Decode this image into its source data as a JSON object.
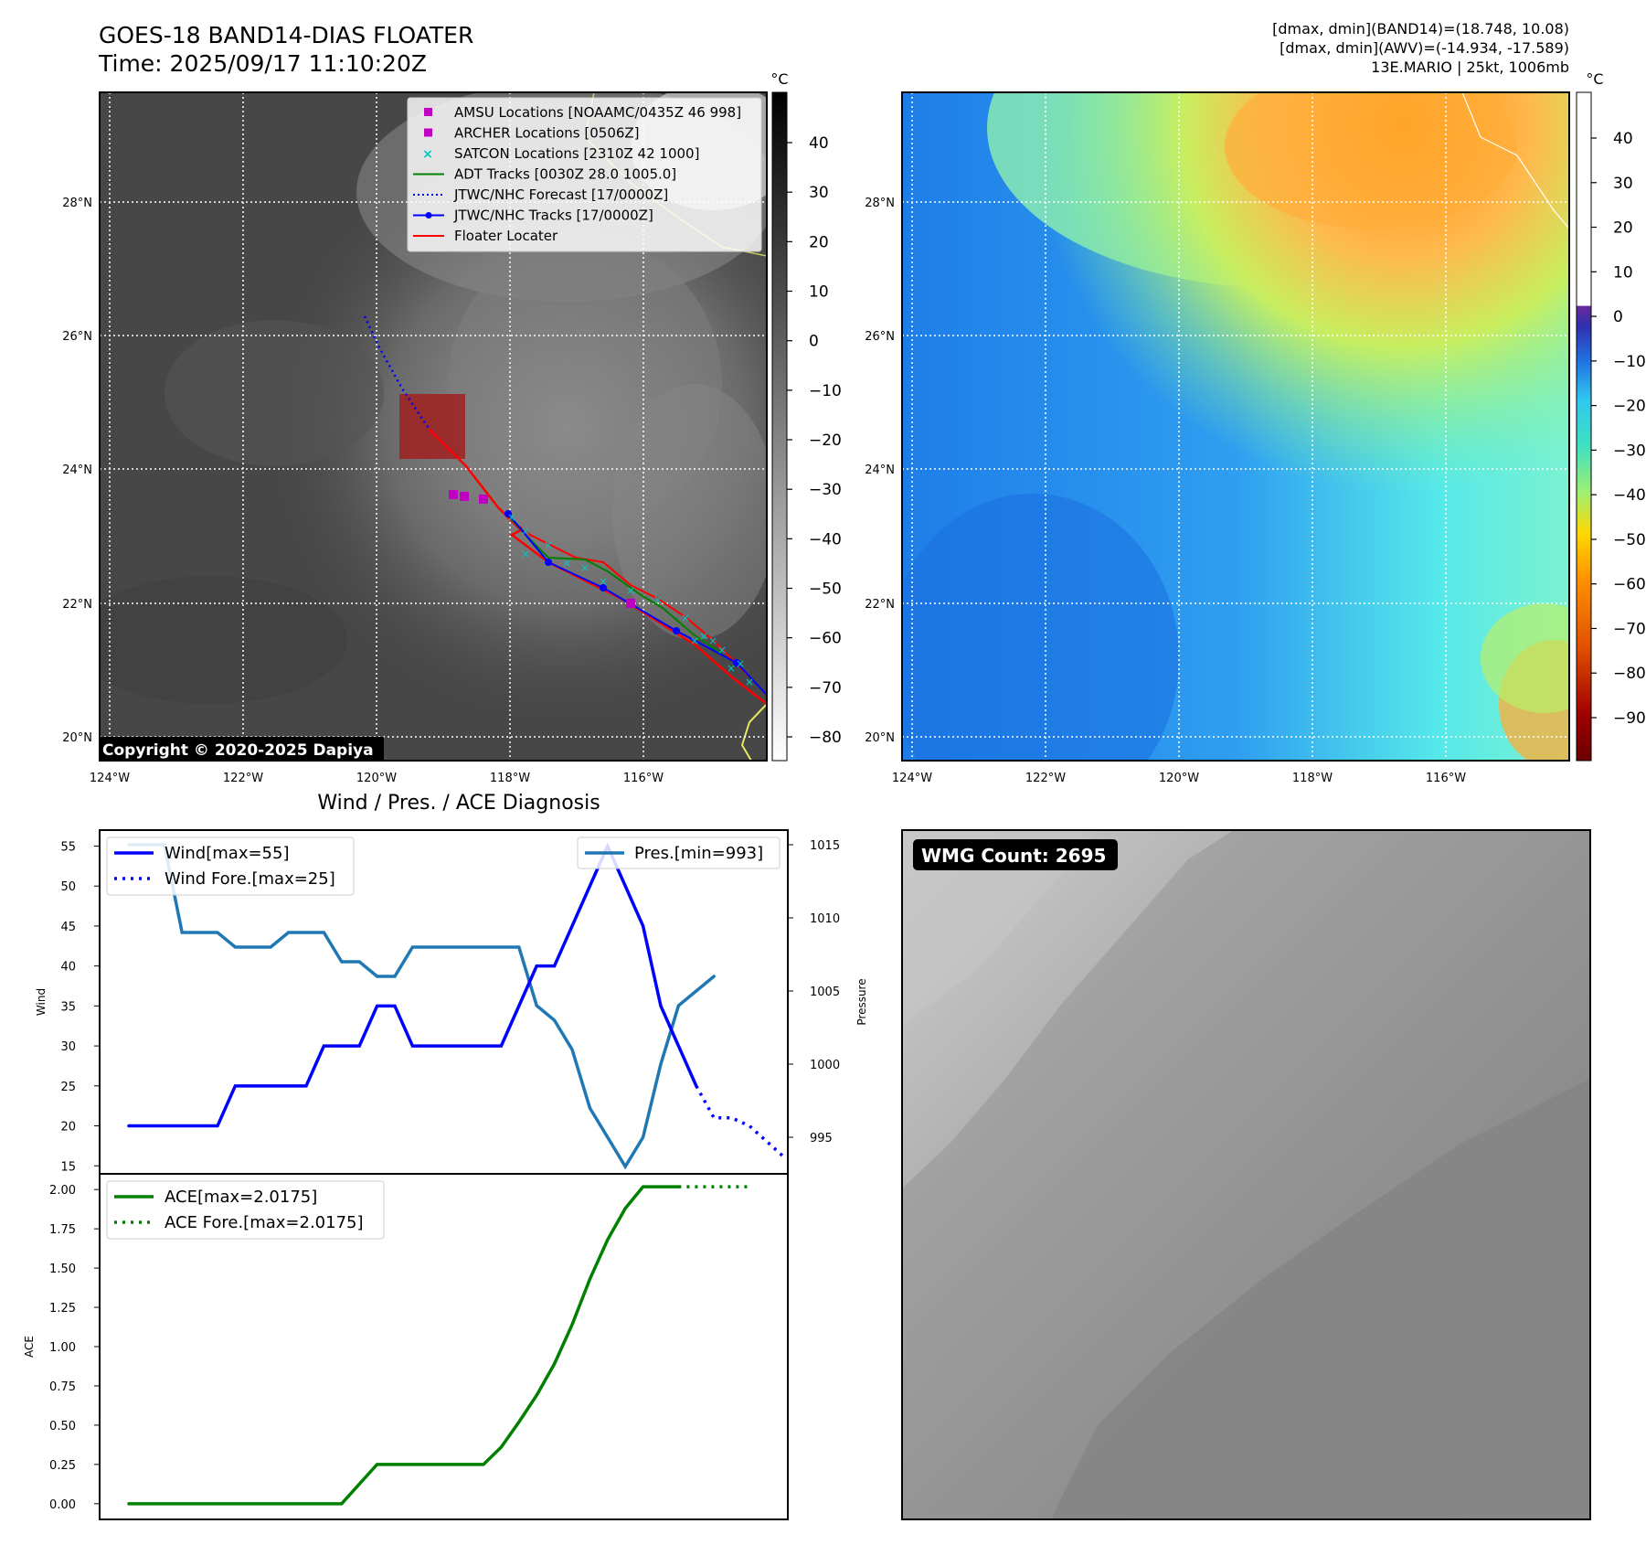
{
  "header": {
    "title": "GOES-18 BAND14-DIAS FLOATER",
    "time": "Time: 2025/09/17 11:10:20Z",
    "info_lines": [
      "[dmax, dmin](BAND14)=(18.748, 10.08)",
      "[dmax, dmin](AWV)=(-14.934, -17.589)",
      "13E.MARIO | 25kt, 1006mb"
    ]
  },
  "copyright": "Copyright © 2020-2025 Dapiya",
  "colors": {
    "amsu": "#c000c0",
    "archer": "#c000c0",
    "satcon": "#00c8c8",
    "adt": "#008000",
    "jtwc": "#0000ff",
    "floater": "#ff0000",
    "wind": "#0000ff",
    "pressure": "#1f77b4",
    "ace": "#008000"
  },
  "map_common": {
    "lon_ticks": [
      "124°W",
      "122°W",
      "120°W",
      "118°W",
      "116°W"
    ],
    "lat_ticks": [
      "28°N",
      "26°N",
      "24°N",
      "22°N",
      "20°N"
    ]
  },
  "ir_panel": {
    "colorbar_unit": "°C",
    "colorbar_ticks": [
      "40",
      "30",
      "20",
      "10",
      "0",
      "−10",
      "−20",
      "−30",
      "−40",
      "−50",
      "−60",
      "−70",
      "−80"
    ],
    "legend": [
      {
        "label": "AMSU Locations [NOAAMC/0435Z 46 998]",
        "marker": "square",
        "color": "#c000c0"
      },
      {
        "label": "ARCHER Locations [0506Z]",
        "marker": "square",
        "color": "#c000c0"
      },
      {
        "label": "SATCON Locations [2310Z 42 1000]",
        "marker": "x",
        "color": "#00c8c8"
      },
      {
        "label": "ADT Tracks [0030Z 28.0 1005.0]",
        "marker": "line",
        "color": "#008000"
      },
      {
        "label": "JTWC/NHC Forecast [17/0000Z]",
        "marker": "dotted",
        "color": "#0000ff"
      },
      {
        "label": "JTWC/NHC Tracks [17/0000Z]",
        "marker": "line-dot",
        "color": "#0000ff"
      },
      {
        "label": "Floater Locater",
        "marker": "line",
        "color": "#ff0000"
      }
    ]
  },
  "wv_panel": {
    "colorbar_unit": "°C",
    "colorbar_ticks": [
      "40",
      "30",
      "20",
      "10",
      "0",
      "−10",
      "−20",
      "−30",
      "−40",
      "−50",
      "−60",
      "−70",
      "−80",
      "−90"
    ]
  },
  "diag": {
    "title": "Wind / Pres. / ACE Diagnosis"
  },
  "wmg": {
    "label": "WMG Count: 2695"
  },
  "chart_data": [
    {
      "type": "line",
      "title": "Wind / Pres. / ACE Diagnosis",
      "ylabel": "Wind",
      "ylabel_right": "Pressure",
      "ylim": [
        14,
        57
      ],
      "ylim_right": [
        992.5,
        1016
      ],
      "yticks": [
        15,
        20,
        25,
        30,
        35,
        40,
        45,
        50,
        55
      ],
      "yticks_right": [
        995,
        1000,
        1005,
        1010,
        1015
      ],
      "series": [
        {
          "name": "Wind[max=55]",
          "axis": "left",
          "style": "solid",
          "values": [
            20,
            20,
            20,
            20,
            20,
            20,
            25,
            25,
            25,
            25,
            25,
            30,
            30,
            30,
            35,
            35,
            30,
            30,
            30,
            30,
            30,
            30,
            35,
            40,
            40,
            45,
            50,
            55,
            50,
            45,
            35,
            30,
            25
          ]
        },
        {
          "name": "Wind Fore.[max=25]",
          "axis": "left",
          "style": "dotted",
          "values": [
            25,
            21,
            21,
            20,
            18,
            16
          ],
          "offset": 32
        },
        {
          "name": "Pres.[min=993]",
          "axis": "right",
          "style": "solid",
          "values": [
            1015,
            1015,
            1015,
            1009,
            1009,
            1009,
            1008,
            1008,
            1008,
            1009,
            1009,
            1009,
            1007,
            1007,
            1006,
            1006,
            1008,
            1008,
            1008,
            1008,
            1008,
            1008,
            1008,
            1004,
            1003,
            1001,
            997,
            995,
            993,
            995,
            1000,
            1004,
            1005,
            1006
          ]
        }
      ]
    },
    {
      "type": "line",
      "ylabel": "ACE",
      "ylim": [
        -0.1,
        2.1
      ],
      "yticks": [
        0.0,
        0.25,
        0.5,
        0.75,
        1.0,
        1.25,
        1.5,
        1.75,
        2.0
      ],
      "ytick_labels": [
        "0.00",
        "0.25",
        "0.50",
        "0.75",
        "1.00",
        "1.25",
        "1.50",
        "1.75",
        "2.00"
      ],
      "series": [
        {
          "name": "ACE[max=2.0175]",
          "style": "solid",
          "values": [
            0,
            0,
            0,
            0,
            0,
            0,
            0,
            0,
            0,
            0,
            0,
            0,
            0,
            0.125,
            0.25,
            0.25,
            0.25,
            0.25,
            0.25,
            0.25,
            0.25,
            0.36,
            0.52,
            0.69,
            0.89,
            1.14,
            1.43,
            1.68,
            1.88,
            2.0175,
            2.0175,
            2.0175
          ]
        },
        {
          "name": "ACE Fore.[max=2.0175]",
          "style": "dotted",
          "values": [
            2.0175,
            2.0175,
            2.0175,
            2.0175,
            2.0175
          ],
          "offset": 31
        }
      ]
    }
  ]
}
